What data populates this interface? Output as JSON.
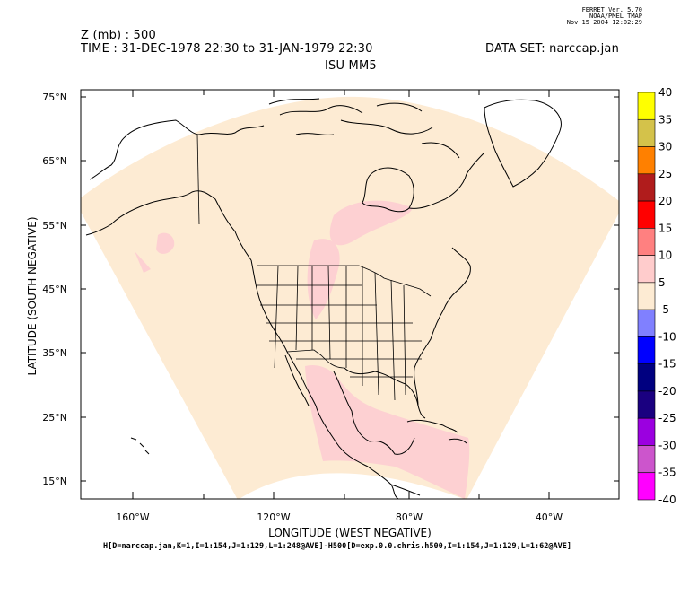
{
  "ferret": {
    "line1": "FERRET Ver. 5.70",
    "line2": "NOAA/PMEL TMAP",
    "line3": "Nov 15 2004 12:02:29"
  },
  "header": {
    "z_level": "Z (mb) : 500",
    "time": "TIME : 31-DEC-1978 22:30 to 31-JAN-1979 22:30",
    "dataset": "DATA SET: narccap.jan",
    "model": "ISU MM5"
  },
  "axes": {
    "ylabel": "LATITUDE (SOUTH NEGATIVE)",
    "xlabel": "LONGITUDE (WEST NEGATIVE)",
    "yticks": [
      "75°N",
      "65°N",
      "55°N",
      "45°N",
      "35°N",
      "25°N",
      "15°N"
    ],
    "xticks": [
      "160°W",
      "120°W",
      "80°W",
      "40°W"
    ]
  },
  "colorbar": {
    "labels": [
      "40",
      "35",
      "30",
      "25",
      "20",
      "15",
      "10",
      "5",
      "-5",
      "-10",
      "-15",
      "-20",
      "-25",
      "-30",
      "-35",
      "-40"
    ],
    "colors": [
      "#ffff00",
      "#d4c24a",
      "#ff8000",
      "#b01c1c",
      "#ff0000",
      "#ff8080",
      "#ffcccc",
      "#fdebd3",
      "#ccccff",
      "#8080ff",
      "#0000ff",
      "#000080",
      "#1a0080",
      "#9b00e0",
      "#cc55cc",
      "#ff00ff"
    ]
  },
  "footer": {
    "expression": "H[D=narccap.jan,K=1,I=1:154,J=1:129,L=1:248@AVE]-H500[D=exp.0.0.chris.h500,I=1:154,J=1:129,L=1:62@AVE]"
  }
}
